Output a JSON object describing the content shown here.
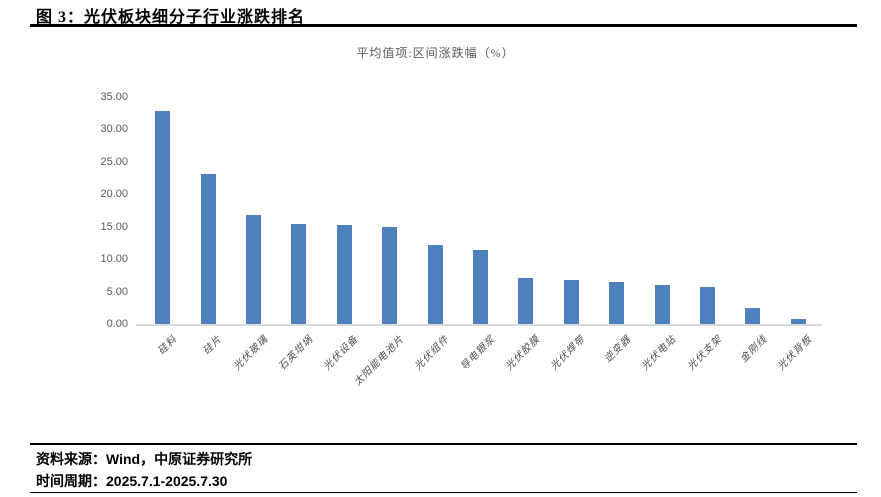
{
  "figure": {
    "title": "图 3：光伏板块细分子行业涨跌排名"
  },
  "chart_data": {
    "type": "bar",
    "title": "平均值项:区间涨跌幅（%）",
    "categories": [
      "硅料",
      "硅片",
      "光伏玻璃",
      "石英坩埚",
      "光伏设备",
      "太阳能电池片",
      "光伏组件",
      "导电银浆",
      "光伏胶膜",
      "光伏焊带",
      "逆变器",
      "光伏电站",
      "光伏支架",
      "金刚线",
      "光伏背板"
    ],
    "values": [
      33.0,
      23.3,
      16.9,
      15.5,
      15.4,
      15.1,
      12.3,
      11.5,
      7.2,
      7.0,
      6.7,
      6.2,
      5.9,
      2.6,
      1.0
    ],
    "xlabel": "",
    "ylabel": "",
    "ylim": [
      0,
      35
    ],
    "yticks": [
      "0.00",
      "5.00",
      "10.00",
      "15.00",
      "20.00",
      "25.00",
      "30.00",
      "35.00"
    ],
    "grid": false,
    "legend": false,
    "bar_color": "#4F81BD",
    "axis_line_color": "#D9D9D9",
    "tick_label_color": "#595959"
  },
  "footer": {
    "source_label": "资料来源：",
    "source_value": "Wind，中原证券研究所",
    "period_label": "时间周期：",
    "period_value": "2025.7.1-2025.7.30"
  }
}
